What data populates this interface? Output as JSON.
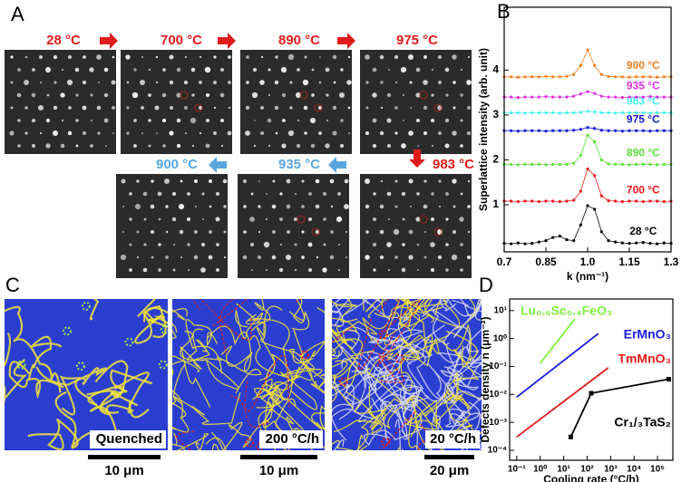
{
  "panel_labels": [
    "A",
    "B",
    "C",
    "D"
  ],
  "panel_a": {
    "temperatures": [
      "28 °C",
      "700 °C",
      "890 °C",
      "975 °C",
      "983 °C",
      "935 °C",
      "900 °C"
    ]
  },
  "panel_c": {
    "labels": [
      "Quenched",
      "200 °C/h",
      "20 °C/h"
    ],
    "scale_bars": [
      "10 μm",
      "10 μm",
      "20 μm"
    ]
  },
  "chart_data": [
    {
      "type": "line",
      "x_label": "k (nm⁻¹)",
      "y_label": "Superlattice  intensity (arb. unit)",
      "x": [
        0.7,
        0.725,
        0.75,
        0.775,
        0.8,
        0.825,
        0.85,
        0.875,
        0.9,
        0.925,
        0.95,
        0.975,
        1.0,
        1.025,
        1.05,
        1.075,
        1.1,
        1.125,
        1.15,
        1.175,
        1.2,
        1.225,
        1.25,
        1.275,
        1.3
      ],
      "xlim": [
        0.7,
        1.3
      ],
      "xticks": [
        0.7,
        0.85,
        {
          "value": 1,
          "label": "1.0"
        },
        1.15,
        1.3
      ],
      "ylim": [
        -0.05,
        5.4
      ],
      "yticks": [
        1,
        2,
        3,
        4
      ],
      "series": [
        {
          "name": "28 °C",
          "color": "#000000",
          "values": [
            0.14,
            0.13,
            0.15,
            0.13,
            0.14,
            0.17,
            0.2,
            0.27,
            0.3,
            0.22,
            0.2,
            0.55,
            0.98,
            0.9,
            0.4,
            0.2,
            0.17,
            0.15,
            0.14,
            0.15,
            0.16,
            0.14,
            0.13,
            0.15,
            0.14
          ]
        },
        {
          "name": "700 °C",
          "color": "#e8151b",
          "values": [
            1.08,
            1.08,
            1.07,
            1.08,
            1.08,
            1.07,
            1.08,
            1.08,
            1.07,
            1.08,
            1.1,
            1.3,
            1.8,
            1.65,
            1.2,
            1.09,
            1.08,
            1.07,
            1.08,
            1.08,
            1.07,
            1.08,
            1.08,
            1.07,
            1.08
          ]
        },
        {
          "name": "890 °C",
          "color": "#5de03a",
          "values": [
            1.9,
            1.9,
            1.89,
            1.9,
            1.9,
            1.9,
            1.89,
            1.9,
            1.9,
            1.9,
            1.92,
            2.1,
            2.55,
            2.4,
            2.0,
            1.91,
            1.9,
            1.9,
            1.89,
            1.9,
            1.9,
            1.9,
            1.89,
            1.9,
            1.9
          ]
        },
        {
          "name": "975 °C",
          "color": "#1717d6",
          "values": [
            2.65,
            2.65,
            2.64,
            2.65,
            2.65,
            2.65,
            2.64,
            2.65,
            2.65,
            2.65,
            2.66,
            2.68,
            2.72,
            2.7,
            2.66,
            2.65,
            2.65,
            2.64,
            2.65,
            2.65,
            2.65,
            2.64,
            2.65,
            2.65,
            2.65
          ]
        },
        {
          "name": "983 °C",
          "color": "#3ff0f0",
          "values": [
            3.05,
            3.05,
            3.05,
            3.04,
            3.05,
            3.05,
            3.05,
            3.05,
            3.04,
            3.05,
            3.05,
            3.06,
            3.08,
            3.07,
            3.05,
            3.05,
            3.04,
            3.05,
            3.05,
            3.05,
            3.05,
            3.04,
            3.05,
            3.05,
            3.05
          ]
        },
        {
          "name": "935 °C",
          "color": "#e030e0",
          "values": [
            3.4,
            3.4,
            3.39,
            3.4,
            3.4,
            3.4,
            3.41,
            3.4,
            3.4,
            3.4,
            3.42,
            3.47,
            3.52,
            3.48,
            3.42,
            3.4,
            3.4,
            3.39,
            3.4,
            3.4,
            3.4,
            3.41,
            3.4,
            3.4,
            3.4
          ]
        },
        {
          "name": "900 °C",
          "color": "#f08020",
          "values": [
            3.85,
            3.85,
            3.84,
            3.85,
            3.85,
            3.85,
            3.86,
            3.85,
            3.85,
            3.86,
            3.9,
            4.1,
            4.45,
            4.1,
            3.9,
            3.86,
            3.85,
            3.85,
            3.84,
            3.85,
            3.85,
            3.85,
            3.84,
            3.85,
            3.85
          ]
        }
      ]
    },
    {
      "type": "loglog",
      "x_label": "Cooling rate (°C/h)",
      "y_label": "Defects density n (μm⁻²)",
      "xlim": [
        0.05,
        450000
      ],
      "xticks": [
        {
          "value": 0.1,
          "label": "10⁻¹"
        },
        {
          "value": 1,
          "label": "10⁰"
        },
        {
          "value": 10,
          "label": "10¹"
        },
        {
          "value": 100,
          "label": "10²"
        },
        {
          "value": 1000,
          "label": "10³"
        },
        {
          "value": 10000,
          "label": "10⁴"
        },
        {
          "value": 100000,
          "label": "10⁵"
        }
      ],
      "ylim": [
        4.4e-05,
        26
      ],
      "yticks": [
        {
          "value": 0.0001,
          "label": "10⁻⁴"
        },
        {
          "value": 0.001,
          "label": "10⁻³"
        },
        {
          "value": 0.01,
          "label": "10⁻²"
        },
        {
          "value": 0.1,
          "label": "10⁻¹"
        },
        {
          "value": 1,
          "label": "10⁰"
        },
        {
          "value": 10,
          "label": "10¹"
        }
      ],
      "series": [
        {
          "name": "Lu₀.₆Sc₀.₄FeO₃",
          "color": "#7ef040",
          "x": [
            1,
            30
          ],
          "values": [
            0.13,
            5
          ]
        },
        {
          "name": "ErMnO₃",
          "color": "#1a1adf",
          "x": [
            0.1,
            300
          ],
          "values": [
            0.008,
            1.5
          ]
        },
        {
          "name": "TmMnO₃",
          "color": "#e31a1a",
          "x": [
            0.1,
            800
          ],
          "values": [
            0.0003,
            0.09
          ]
        },
        {
          "name": "Cr₁/₃TaS₂",
          "color": "#000000",
          "x": [
            20,
            150,
            300000
          ],
          "values": [
            0.0003,
            0.011,
            0.035
          ],
          "markers": true
        }
      ]
    }
  ]
}
